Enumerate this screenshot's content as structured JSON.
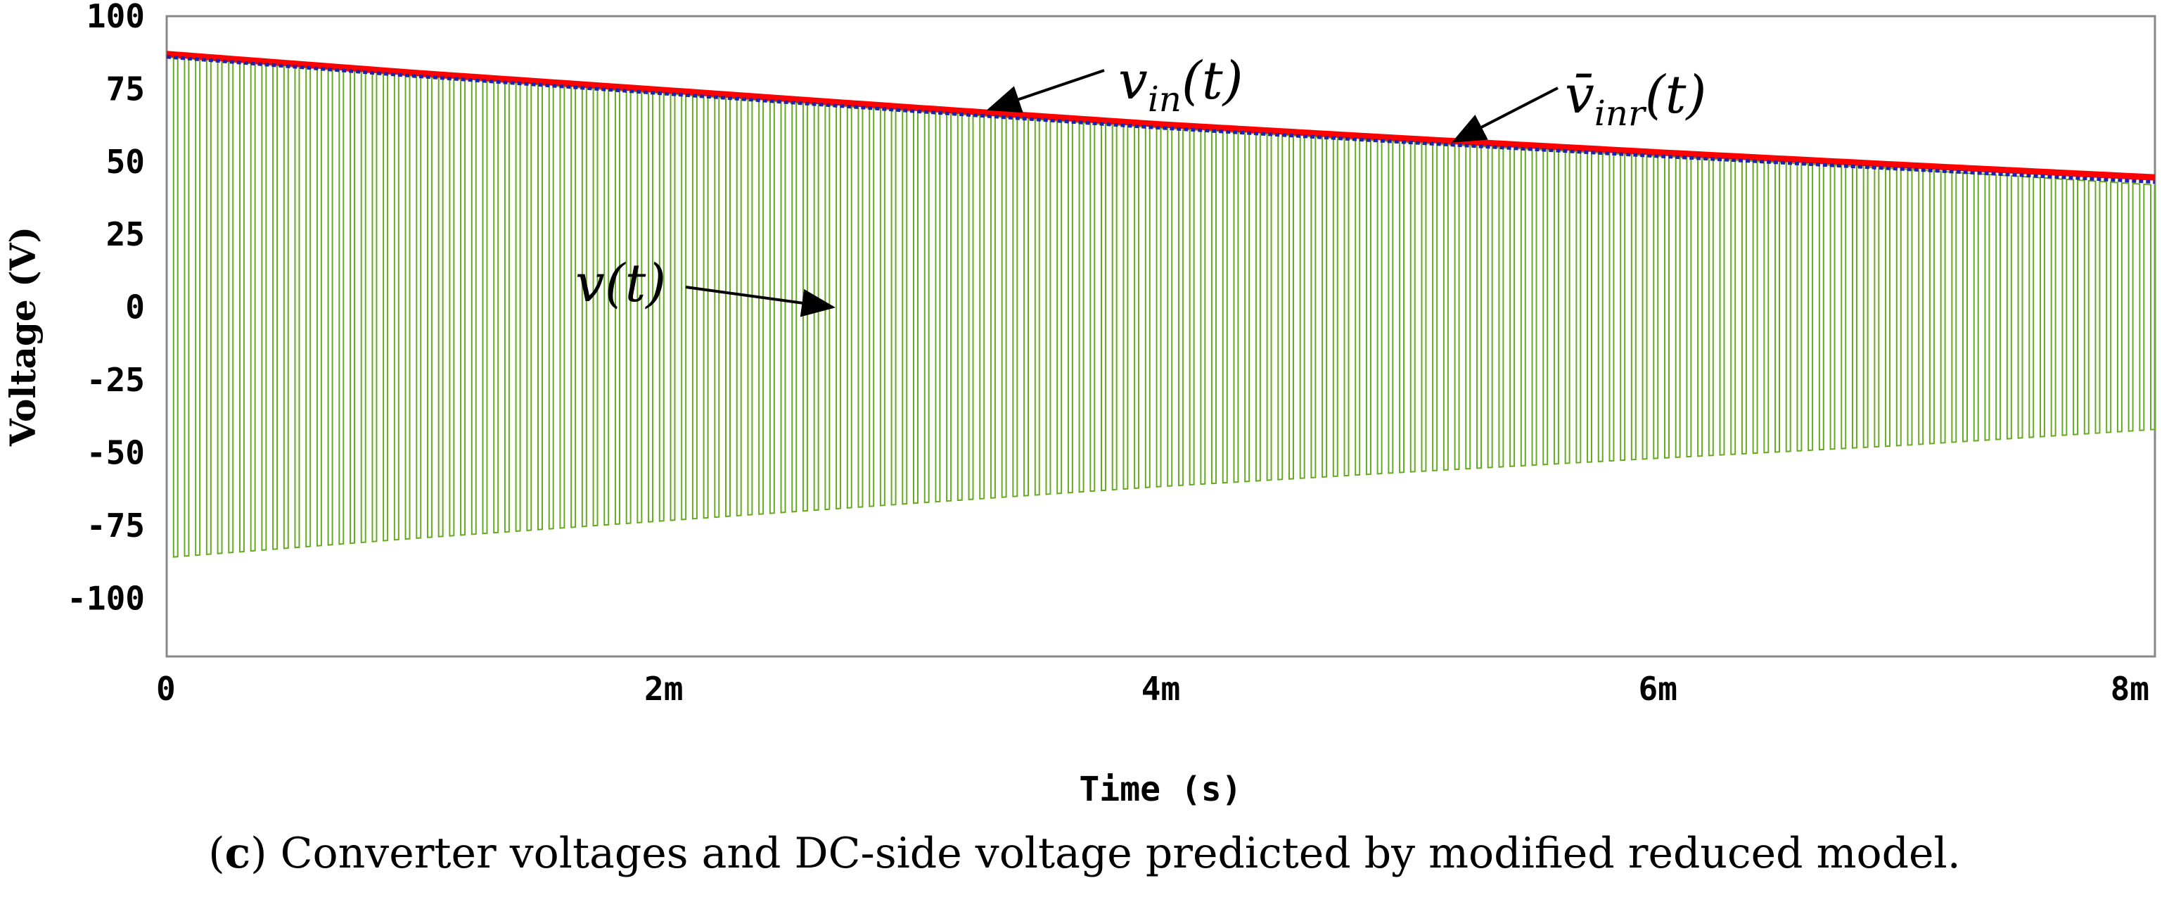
{
  "caption": {
    "prefix": "(",
    "letter": "c",
    "suffix": ") Converter voltages and DC-side voltage predicted by modified reduced model."
  },
  "chart_data": {
    "type": "line",
    "title": "",
    "xlabel": "Time (s)",
    "ylabel": "Voltage (V)",
    "xlim": [
      0,
      0.008
    ],
    "ylim": [
      -120,
      100
    ],
    "x_ticks": [
      {
        "value": 0,
        "label": "0"
      },
      {
        "value": 0.002,
        "label": "2m"
      },
      {
        "value": 0.004,
        "label": "4m"
      },
      {
        "value": 0.006,
        "label": "6m"
      },
      {
        "value": 0.008,
        "label": "8m"
      }
    ],
    "y_ticks": [
      {
        "value": 100,
        "label": "100"
      },
      {
        "value": 75,
        "label": "75"
      },
      {
        "value": 50,
        "label": "50"
      },
      {
        "value": 25,
        "label": "25"
      },
      {
        "value": 0,
        "label": "0"
      },
      {
        "value": -25,
        "label": "-25"
      },
      {
        "value": -50,
        "label": "-50"
      },
      {
        "value": -75,
        "label": "-75"
      },
      {
        "value": -100,
        "label": "-100"
      }
    ],
    "grid": false,
    "series": [
      {
        "name": "v_in(t)",
        "color": "#ff0000",
        "x": [
          0,
          0.001,
          0.002,
          0.003,
          0.004,
          0.005,
          0.006,
          0.007,
          0.008
        ],
        "y": [
          87,
          80.5,
          74.6,
          68.6,
          62.8,
          57.9,
          53.2,
          48.8,
          44.6
        ]
      },
      {
        "name": "v̄_inr(t)",
        "color": "#2222aa",
        "x": [
          0,
          0.001,
          0.002,
          0.003,
          0.004,
          0.005,
          0.006,
          0.007,
          0.008
        ],
        "y": [
          86,
          79.4,
          73.4,
          67.4,
          61.6,
          56.6,
          51.9,
          47.4,
          43.0
        ]
      },
      {
        "name": "v(t)",
        "color": "#66aa22",
        "style": "square-wave",
        "switching_cycles": 180,
        "envelope_x": [
          0,
          0.001,
          0.002,
          0.003,
          0.004,
          0.005,
          0.006,
          0.007,
          0.008
        ],
        "envelope_y": [
          86,
          79.4,
          73.4,
          67.4,
          61.6,
          56.6,
          51.9,
          47.4,
          42.0
        ]
      }
    ],
    "annotations": [
      {
        "base": "v",
        "sub": "in",
        "tail": "(t)",
        "target_x": 0.00331,
        "target_y": 68
      },
      {
        "base": "v̄",
        "sub": "inr",
        "tail": "(t)",
        "target_x": 0.00518,
        "target_y": 57
      },
      {
        "base": "v",
        "sub": "",
        "tail": "(t)",
        "target_x": 0.00268,
        "target_y": 0
      }
    ]
  }
}
